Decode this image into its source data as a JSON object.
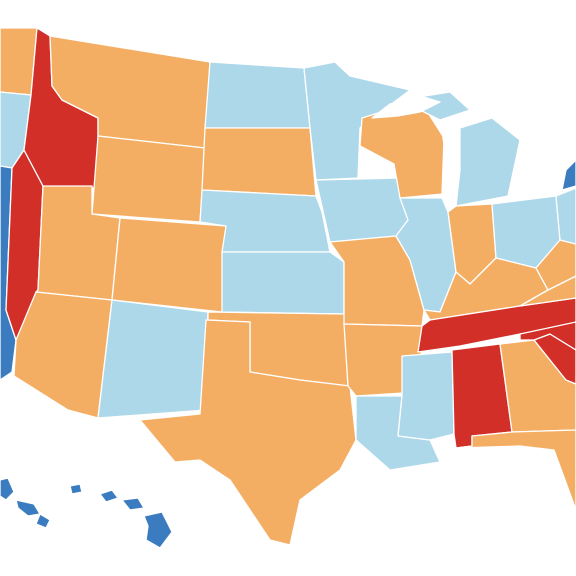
{
  "colors": {
    "dark_red": "#d22f28",
    "orange": "#f4ae64",
    "light_blue": "#add8ea",
    "dark_blue": "#3b7cc0",
    "background": "#ffffff"
  },
  "legend": [],
  "states": {
    "WA": "orange",
    "OR": "light_blue",
    "CA": "dark_blue",
    "NV": "dark_red",
    "ID": "dark_red",
    "MT": "orange",
    "WY": "orange",
    "UT": "orange",
    "AZ": "orange",
    "CO": "orange",
    "NM": "light_blue",
    "ND": "light_blue",
    "SD": "orange",
    "NE": "light_blue",
    "KS": "light_blue",
    "OK": "orange",
    "TX": "orange",
    "MN": "light_blue",
    "IA": "light_blue",
    "MO": "orange",
    "AR": "orange",
    "LA": "light_blue",
    "WI": "orange",
    "IL": "light_blue",
    "MI": "light_blue",
    "IN": "orange",
    "OH": "light_blue",
    "KY": "orange",
    "TN": "dark_red",
    "MS": "light_blue",
    "AL": "dark_red",
    "GA": "orange",
    "FL": "orange",
    "SC": "dark_red",
    "NC": "dark_red",
    "VA": "orange",
    "WV": "orange",
    "PA": "light_blue",
    "NY": "dark_blue",
    "HI": "dark_blue"
  }
}
